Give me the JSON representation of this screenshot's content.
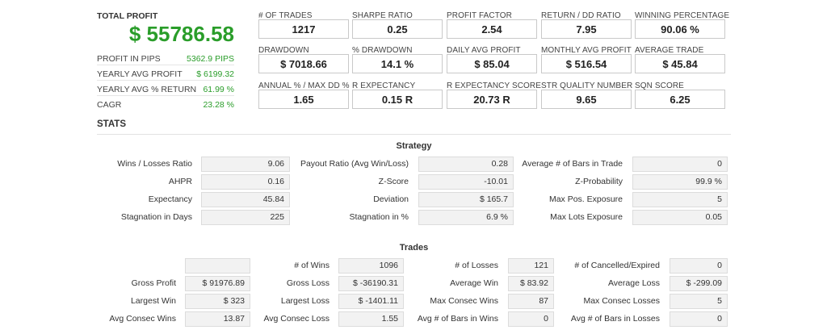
{
  "summary": {
    "total_profit_label": "TOTAL PROFIT",
    "total_profit_value": "$ 55786.58",
    "rows": [
      {
        "label": "PROFIT IN PIPS",
        "value": "5362.9 PIPS"
      },
      {
        "label": "YEARLY AVG PROFIT",
        "value": "$ 6199.32"
      },
      {
        "label": "YEARLY AVG % RETURN",
        "value": "61.99 %"
      },
      {
        "label": "CAGR",
        "value": "23.28 %"
      }
    ]
  },
  "metrics": [
    {
      "label": "# OF TRADES",
      "value": "1217"
    },
    {
      "label": "SHARPE RATIO",
      "value": "0.25"
    },
    {
      "label": "PROFIT FACTOR",
      "value": "2.54"
    },
    {
      "label": "RETURN / DD RATIO",
      "value": "7.95"
    },
    {
      "label": "WINNING PERCENTAGE",
      "value": "90.06 %"
    },
    {
      "label": "DRAWDOWN",
      "value": "$ 7018.66"
    },
    {
      "label": "% DRAWDOWN",
      "value": "14.1 %"
    },
    {
      "label": "DAILY AVG PROFIT",
      "value": "$ 85.04"
    },
    {
      "label": "MONTHLY AVG PROFIT",
      "value": "$ 516.54"
    },
    {
      "label": "AVERAGE TRADE",
      "value": "$ 45.84"
    },
    {
      "label": "ANNUAL % / MAX DD %",
      "value": "1.65"
    },
    {
      "label": "R EXPECTANCY",
      "value": "0.15 R"
    },
    {
      "label": "R EXPECTANCY SCORE",
      "value": "20.73 R"
    },
    {
      "label": "STR QUALITY NUMBER",
      "value": "9.65"
    },
    {
      "label": "SQN SCORE",
      "value": "6.25"
    }
  ],
  "stats_title": "STATS",
  "strategy": {
    "title": "Strategy",
    "rows": [
      [
        {
          "label": "Wins / Losses Ratio",
          "value": "9.06"
        },
        {
          "label": "Payout Ratio (Avg Win/Loss)",
          "value": "0.28"
        },
        {
          "label": "Average # of Bars in Trade",
          "value": "0"
        }
      ],
      [
        {
          "label": "AHPR",
          "value": "0.16"
        },
        {
          "label": "Z-Score",
          "value": "-10.01"
        },
        {
          "label": "Z-Probability",
          "value": "99.9 %"
        }
      ],
      [
        {
          "label": "Expectancy",
          "value": "45.84"
        },
        {
          "label": "Deviation",
          "value": "$ 165.7"
        },
        {
          "label": "Max Pos. Exposure",
          "value": "5"
        }
      ],
      [
        {
          "label": "Stagnation in Days",
          "value": "225"
        },
        {
          "label": "Stagnation in %",
          "value": "6.9 %"
        },
        {
          "label": "Max Lots Exposure",
          "value": "0.05"
        }
      ]
    ]
  },
  "trades": {
    "title": "Trades",
    "rows": [
      [
        {
          "label": "",
          "value": ""
        },
        {
          "label": "# of Wins",
          "value": "1096"
        },
        {
          "label": "# of Losses",
          "value": "121"
        },
        {
          "label": "# of Cancelled/Expired",
          "value": "0"
        }
      ],
      [
        {
          "label": "Gross Profit",
          "value": "$ 91976.89"
        },
        {
          "label": "Gross Loss",
          "value": "$ -36190.31"
        },
        {
          "label": "Average Win",
          "value": "$ 83.92"
        },
        {
          "label": "Average Loss",
          "value": "$ -299.09"
        }
      ],
      [
        {
          "label": "Largest Win",
          "value": "$ 323"
        },
        {
          "label": "Largest Loss",
          "value": "$ -1401.11"
        },
        {
          "label": "Max Consec Wins",
          "value": "87"
        },
        {
          "label": "Max Consec Losses",
          "value": "5"
        }
      ],
      [
        {
          "label": "Avg Consec Wins",
          "value": "13.87"
        },
        {
          "label": "Avg Consec Loss",
          "value": "1.55"
        },
        {
          "label": "Avg # of Bars in Wins",
          "value": "0"
        },
        {
          "label": "Avg # of Bars in Losses",
          "value": "0"
        }
      ]
    ]
  }
}
